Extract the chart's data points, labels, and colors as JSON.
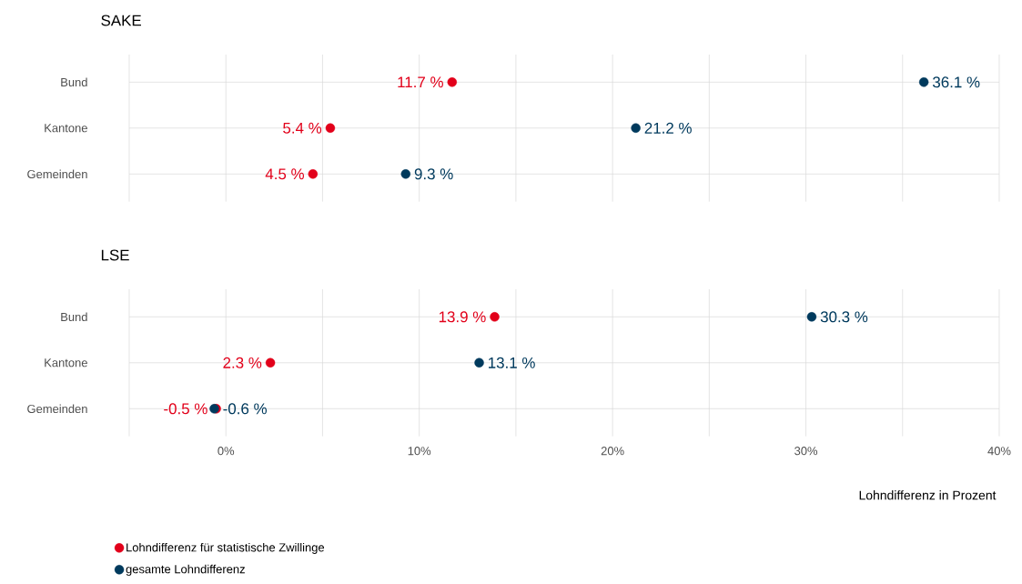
{
  "chart_data": [
    {
      "type": "scatter",
      "orientation": "horizontal",
      "title": "SAKE",
      "categories": [
        "Bund",
        "Kantone",
        "Gemeinden"
      ],
      "xlim": [
        -5,
        40
      ],
      "xticks": [
        {
          "value": -5,
          "label": null
        },
        {
          "value": 0,
          "label": null
        },
        {
          "value": 5,
          "label": null
        },
        {
          "value": 10,
          "label": null
        },
        {
          "value": 15,
          "label": null
        },
        {
          "value": 20,
          "label": null
        },
        {
          "value": 25,
          "label": null
        },
        {
          "value": 30,
          "label": null
        },
        {
          "value": 35,
          "label": null
        },
        {
          "value": 40,
          "label": null
        }
      ],
      "tick_labels": "y",
      "grid": true,
      "series": [
        {
          "color": "#e2001a",
          "values": [
            11.7,
            5.4,
            4.5
          ],
          "value_labels": [
            "11.7 %",
            "5.4 %",
            "4.5 %"
          ]
        },
        {
          "color": "#003a5d",
          "values": [
            36.1,
            21.2,
            9.3
          ],
          "value_labels": [
            "36.1 %",
            "21.2 %",
            "9.3 %"
          ]
        }
      ]
    },
    {
      "type": "scatter",
      "orientation": "horizontal",
      "title": "LSE",
      "xlabel": "Lohndifferenz in Prozent",
      "categories": [
        "Bund",
        "Kantone",
        "Gemeinden"
      ],
      "xlim": [
        -5,
        40
      ],
      "xticks": [
        {
          "value": -5,
          "label": null
        },
        {
          "value": 0,
          "label": "0%"
        },
        {
          "value": 5,
          "label": null
        },
        {
          "value": 10,
          "label": "10%"
        },
        {
          "value": 15,
          "label": null
        },
        {
          "value": 20,
          "label": "20%"
        },
        {
          "value": 25,
          "label": null
        },
        {
          "value": 30,
          "label": "30%"
        },
        {
          "value": 35,
          "label": null
        },
        {
          "value": 40,
          "label": "40%"
        }
      ],
      "grid": true,
      "legend": "bottom",
      "series": [
        {
          "name": "Lohndifferenz für statistische Zwillinge",
          "color": "#e2001a",
          "values": [
            13.9,
            2.3,
            -0.5
          ],
          "value_labels": [
            "13.9 %",
            "2.3 %",
            "-0.5 %"
          ]
        },
        {
          "name": "gesamte Lohndifferenz",
          "color": "#003a5d",
          "values": [
            30.3,
            13.1,
            -0.6
          ],
          "value_labels": [
            "30.3 %",
            "13.1 %",
            "-0.6 %"
          ]
        }
      ]
    }
  ]
}
